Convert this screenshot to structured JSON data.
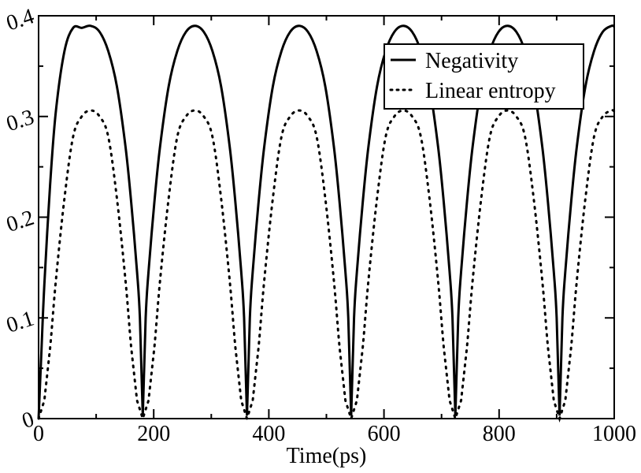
{
  "chart_data": {
    "type": "line",
    "title": "",
    "xlabel": "Time(ps)",
    "ylabel": "",
    "xlim": [
      0,
      1000
    ],
    "ylim": [
      0,
      0.4
    ],
    "xticks": [
      0,
      200,
      400,
      600,
      800,
      1000
    ],
    "xtick_labels": [
      "0",
      "200",
      "400",
      "600",
      "800",
      "1000"
    ],
    "yticks": [
      0,
      0.1,
      0.2,
      0.3,
      0.4
    ],
    "ytick_labels": [
      "0",
      "0.1",
      "0.2",
      "0.3",
      "0.4"
    ],
    "grid": false,
    "legend_position": "top-right",
    "period_ps": 181,
    "series": [
      {
        "name": "Negativity",
        "style": "solid",
        "color": "#000000",
        "peak": 0.39,
        "x": [
          0,
          5,
          10,
          20,
          30,
          45,
          60,
          75,
          90.5,
          106,
          121,
          136,
          151,
          161,
          171,
          176,
          181,
          186,
          191,
          201,
          211,
          226,
          241,
          256,
          271.5,
          287,
          302,
          317,
          332,
          342,
          352,
          357,
          362,
          367,
          372,
          382,
          392,
          407,
          422,
          437,
          452.5,
          468,
          483,
          498,
          513,
          523,
          533,
          538,
          543,
          548,
          553,
          563,
          573,
          588,
          603,
          618,
          633.5,
          649,
          664,
          679,
          694,
          704,
          714,
          719,
          724,
          729,
          734,
          744,
          754,
          769,
          784,
          799,
          814.5,
          830,
          845,
          860,
          875,
          885,
          895,
          900,
          905,
          910,
          915,
          925,
          935,
          950,
          965,
          980,
          995.5,
          1000
        ],
        "y": [
          0,
          0.068,
          0.133,
          0.232,
          0.305,
          0.365,
          0.388,
          0.388,
          0.39,
          0.384,
          0.365,
          0.33,
          0.27,
          0.214,
          0.146,
          0.1,
          0.003,
          0.1,
          0.146,
          0.214,
          0.27,
          0.33,
          0.365,
          0.384,
          0.39,
          0.384,
          0.365,
          0.33,
          0.27,
          0.214,
          0.146,
          0.1,
          0.003,
          0.1,
          0.146,
          0.214,
          0.27,
          0.33,
          0.365,
          0.384,
          0.39,
          0.384,
          0.365,
          0.33,
          0.27,
          0.214,
          0.146,
          0.1,
          0.003,
          0.1,
          0.146,
          0.214,
          0.27,
          0.33,
          0.365,
          0.384,
          0.39,
          0.384,
          0.365,
          0.33,
          0.27,
          0.214,
          0.146,
          0.1,
          0.003,
          0.1,
          0.146,
          0.214,
          0.27,
          0.33,
          0.365,
          0.384,
          0.39,
          0.384,
          0.365,
          0.33,
          0.27,
          0.214,
          0.146,
          0.1,
          0.003,
          0.1,
          0.146,
          0.214,
          0.27,
          0.33,
          0.365,
          0.384,
          0.39,
          0.389
        ]
      },
      {
        "name": "Linear entropy",
        "style": "dotted",
        "color": "#000000",
        "peak": 0.306,
        "x": [
          0,
          10,
          20,
          30,
          45,
          60,
          75,
          90.5,
          106,
          121,
          136,
          151,
          161,
          171,
          181,
          191,
          201,
          211,
          226,
          241,
          256,
          271.5,
          287,
          302,
          317,
          332,
          342,
          352,
          362,
          372,
          382,
          392,
          407,
          422,
          437,
          452.5,
          468,
          483,
          498,
          513,
          523,
          533,
          543,
          553,
          563,
          573,
          588,
          603,
          618,
          633.5,
          649,
          664,
          679,
          694,
          704,
          714,
          724,
          734,
          744,
          754,
          769,
          784,
          799,
          814.5,
          830,
          845,
          860,
          875,
          885,
          895,
          905,
          915,
          925,
          935,
          950,
          965,
          980,
          995.5,
          1000
        ],
        "y": [
          0,
          0.018,
          0.07,
          0.137,
          0.219,
          0.28,
          0.3,
          0.306,
          0.3,
          0.28,
          0.219,
          0.137,
          0.07,
          0.018,
          0.0,
          0.018,
          0.07,
          0.137,
          0.219,
          0.28,
          0.3,
          0.306,
          0.3,
          0.28,
          0.219,
          0.137,
          0.07,
          0.018,
          0.0,
          0.018,
          0.07,
          0.137,
          0.219,
          0.28,
          0.3,
          0.306,
          0.3,
          0.28,
          0.219,
          0.137,
          0.07,
          0.018,
          0.0,
          0.018,
          0.07,
          0.137,
          0.219,
          0.28,
          0.3,
          0.306,
          0.3,
          0.28,
          0.219,
          0.137,
          0.07,
          0.018,
          0.0,
          0.018,
          0.07,
          0.137,
          0.219,
          0.28,
          0.3,
          0.306,
          0.3,
          0.28,
          0.219,
          0.137,
          0.07,
          0.018,
          0.0,
          0.018,
          0.07,
          0.137,
          0.219,
          0.28,
          0.3,
          0.306,
          0.305
        ]
      }
    ]
  }
}
